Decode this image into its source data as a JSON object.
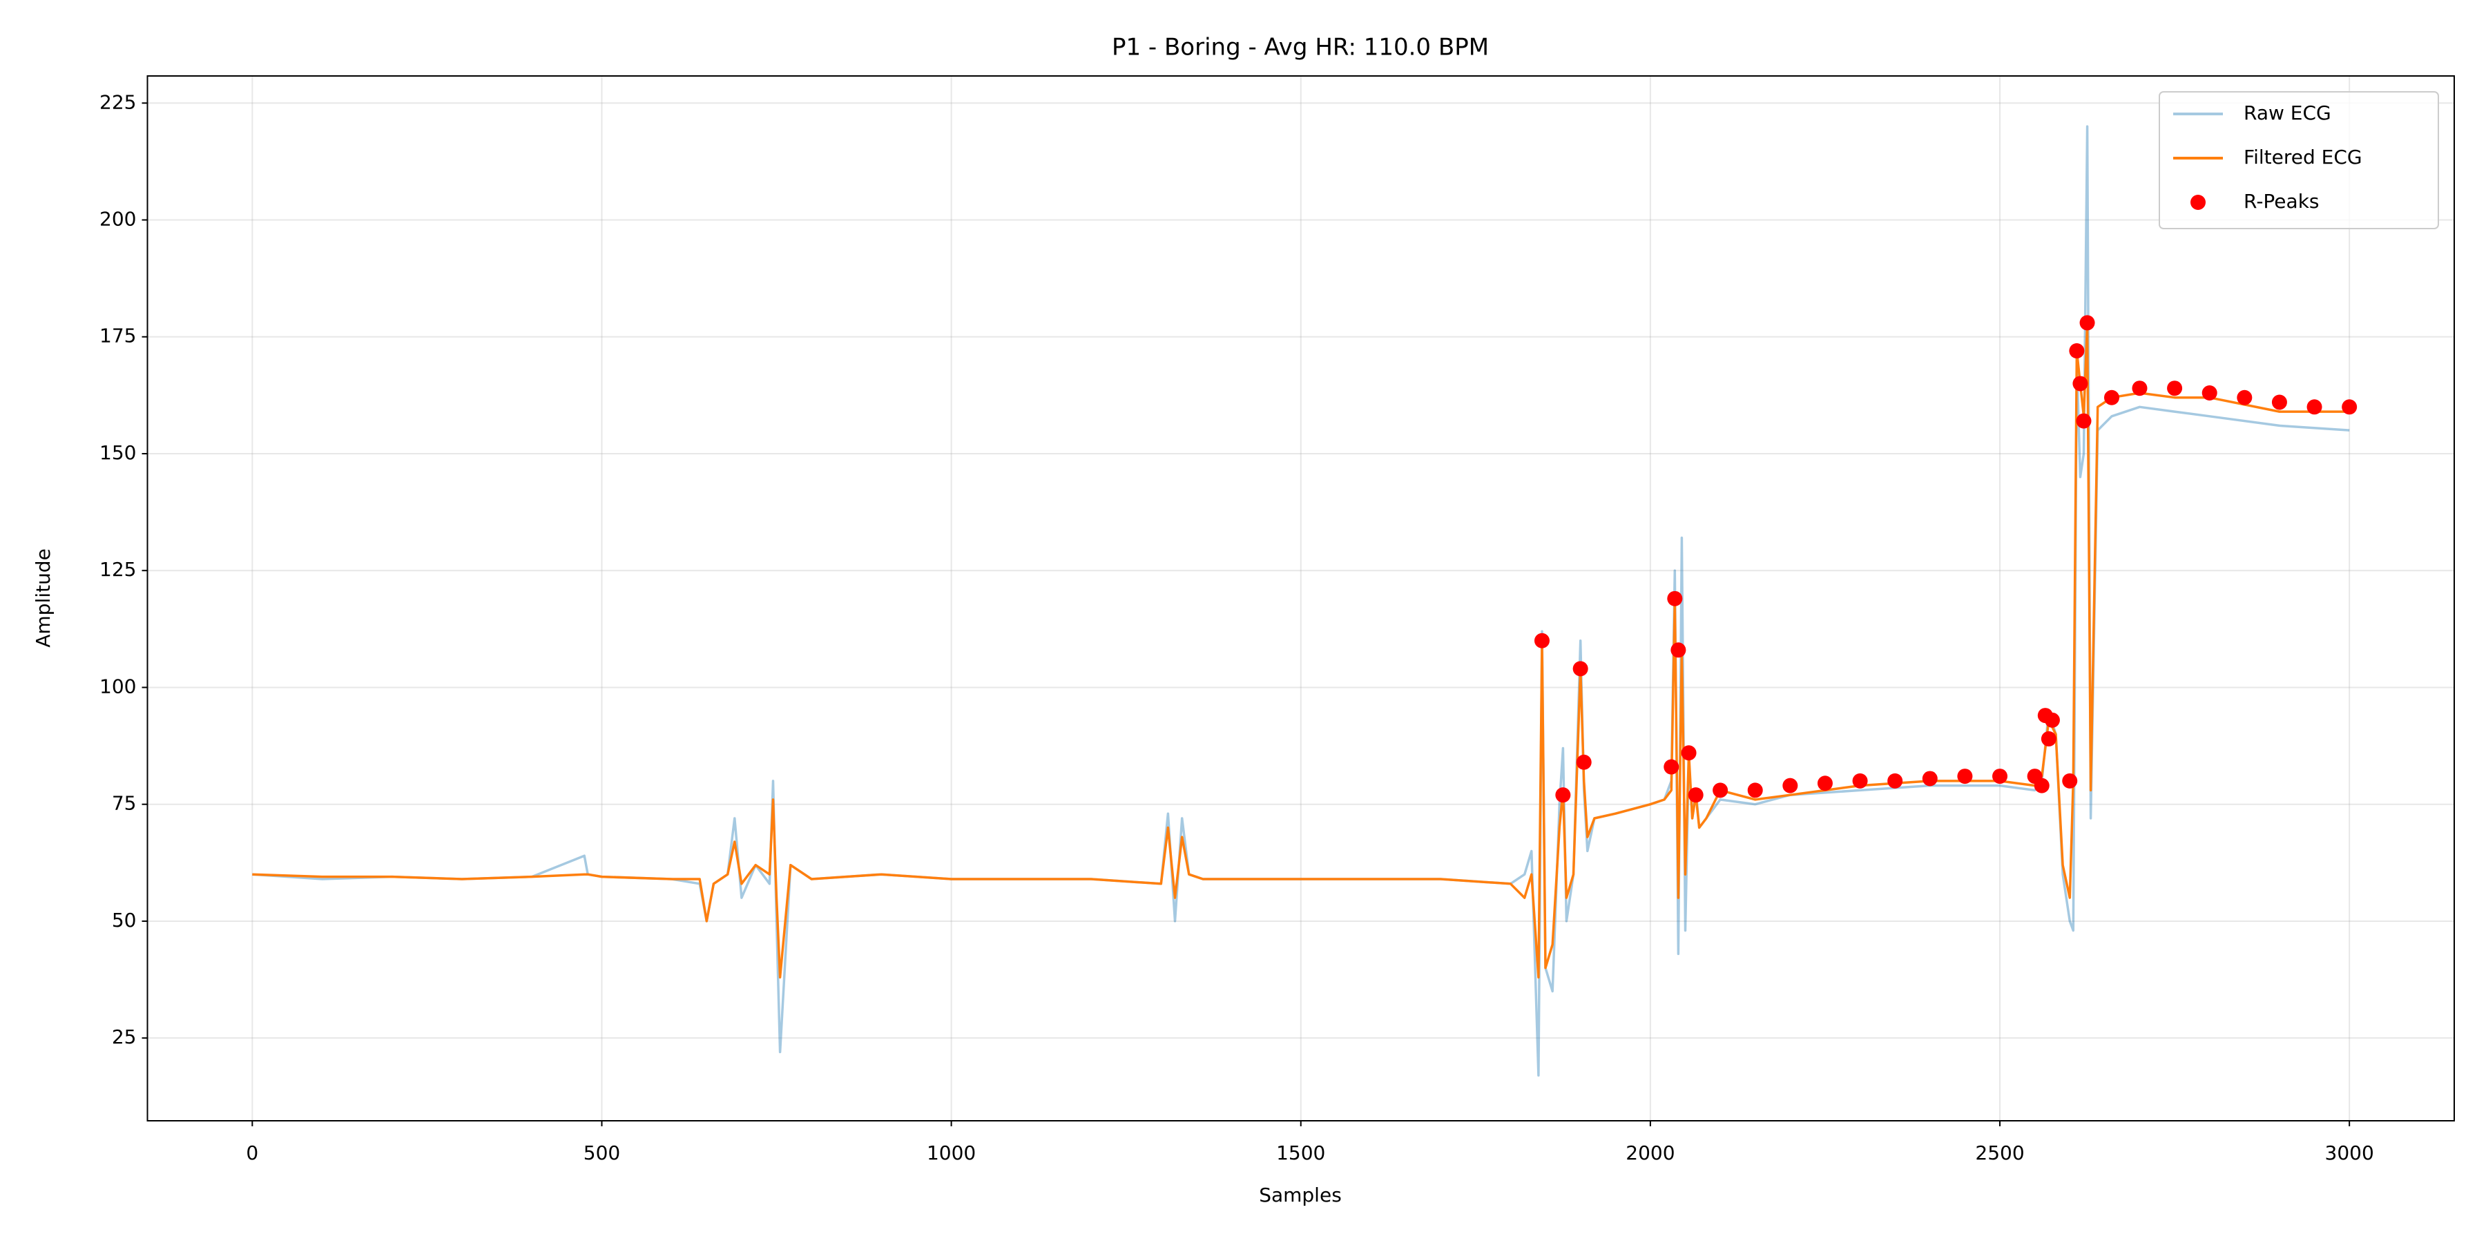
{
  "chart_data": {
    "type": "line",
    "title": "P1 - Boring - Avg HR: 110.0 BPM",
    "xlabel": "Samples",
    "ylabel": "Amplitude",
    "xlim": [
      -150,
      3150
    ],
    "ylim": [
      7.3,
      230.8
    ],
    "xticks": [
      0,
      500,
      1000,
      1500,
      2000,
      2500,
      3000
    ],
    "yticks": [
      25,
      50,
      75,
      100,
      125,
      150,
      175,
      200,
      225
    ],
    "grid": true,
    "legend": "upper right",
    "x": [
      0,
      100,
      200,
      300,
      400,
      475,
      480,
      500,
      600,
      640,
      650,
      660,
      680,
      690,
      700,
      720,
      740,
      745,
      750,
      755,
      770,
      800,
      900,
      1000,
      1100,
      1200,
      1300,
      1310,
      1320,
      1330,
      1340,
      1360,
      1400,
      1500,
      1600,
      1700,
      1800,
      1820,
      1830,
      1840,
      1845,
      1850,
      1860,
      1870,
      1875,
      1880,
      1890,
      1900,
      1905,
      1910,
      1920,
      1950,
      2000,
      2020,
      2030,
      2035,
      2040,
      2045,
      2050,
      2055,
      2060,
      2065,
      2070,
      2080,
      2100,
      2150,
      2200,
      2300,
      2400,
      2500,
      2550,
      2560,
      2570,
      2580,
      2590,
      2600,
      2605,
      2610,
      2615,
      2620,
      2625,
      2630,
      2640,
      2660,
      2700,
      2750,
      2800,
      2900,
      3000
    ],
    "series": [
      {
        "name": "Raw ECG",
        "type": "line",
        "color": "#1f77b4",
        "alpha": 0.4,
        "values": [
          60,
          59,
          59.5,
          59,
          59.5,
          64,
          60,
          59.5,
          59,
          58,
          50,
          58,
          60,
          72,
          55,
          62,
          58,
          80,
          50,
          22,
          62,
          59,
          60,
          59,
          59,
          59,
          58,
          73,
          50,
          72,
          60,
          59,
          59,
          59,
          59,
          59,
          58,
          60,
          65,
          17,
          112,
          40,
          35,
          75,
          87,
          50,
          60,
          110,
          78,
          65,
          72,
          73,
          75,
          76,
          80,
          125,
          43,
          132,
          48,
          85,
          72,
          78,
          70,
          72,
          76,
          75,
          77,
          78,
          79,
          79,
          78,
          80,
          95,
          90,
          60,
          50,
          48,
          170,
          145,
          150,
          220,
          72,
          155,
          158,
          160,
          159,
          158,
          156,
          155
        ]
      },
      {
        "name": "Filtered ECG",
        "type": "line",
        "color": "#ff7f0e",
        "alpha": 1,
        "values": [
          60,
          59.5,
          59.5,
          59,
          59.5,
          60,
          60,
          59.5,
          59,
          59,
          50,
          58,
          60,
          67,
          58,
          62,
          60,
          76,
          55,
          38,
          62,
          59,
          60,
          59,
          59,
          59,
          58,
          70,
          55,
          68,
          60,
          59,
          59,
          59,
          59,
          59,
          58,
          55,
          60,
          38,
          110,
          40,
          45,
          70,
          78,
          55,
          60,
          104,
          80,
          68,
          72,
          73,
          75,
          76,
          78,
          119,
          55,
          108,
          60,
          86,
          72,
          77,
          70,
          72,
          78,
          76,
          77,
          79,
          80,
          80,
          79,
          81,
          93,
          90,
          62,
          55,
          80,
          172,
          165,
          158,
          178,
          78,
          160,
          162,
          163,
          162,
          162,
          159,
          159
        ]
      },
      {
        "name": "R-Peaks",
        "type": "scatter",
        "color": "#ff0000",
        "alpha": 1,
        "x": [
          1845,
          1875,
          1900,
          1905,
          2030,
          2035,
          2040,
          2055,
          2065,
          2100,
          2150,
          2200,
          2250,
          2300,
          2350,
          2400,
          2450,
          2500,
          2550,
          2560,
          2565,
          2570,
          2575,
          2600,
          2610,
          2615,
          2620,
          2625,
          2660,
          2700,
          2750,
          2800,
          2850,
          2900,
          2950,
          3000
        ],
        "values": [
          110,
          77,
          104,
          84,
          83,
          119,
          108,
          86,
          77,
          78,
          78,
          79,
          79.5,
          80,
          80,
          80.5,
          81,
          81,
          81,
          79,
          94,
          89,
          93,
          80,
          172,
          165,
          157,
          178,
          162,
          164,
          164,
          163,
          162,
          161,
          160,
          160
        ]
      }
    ]
  }
}
